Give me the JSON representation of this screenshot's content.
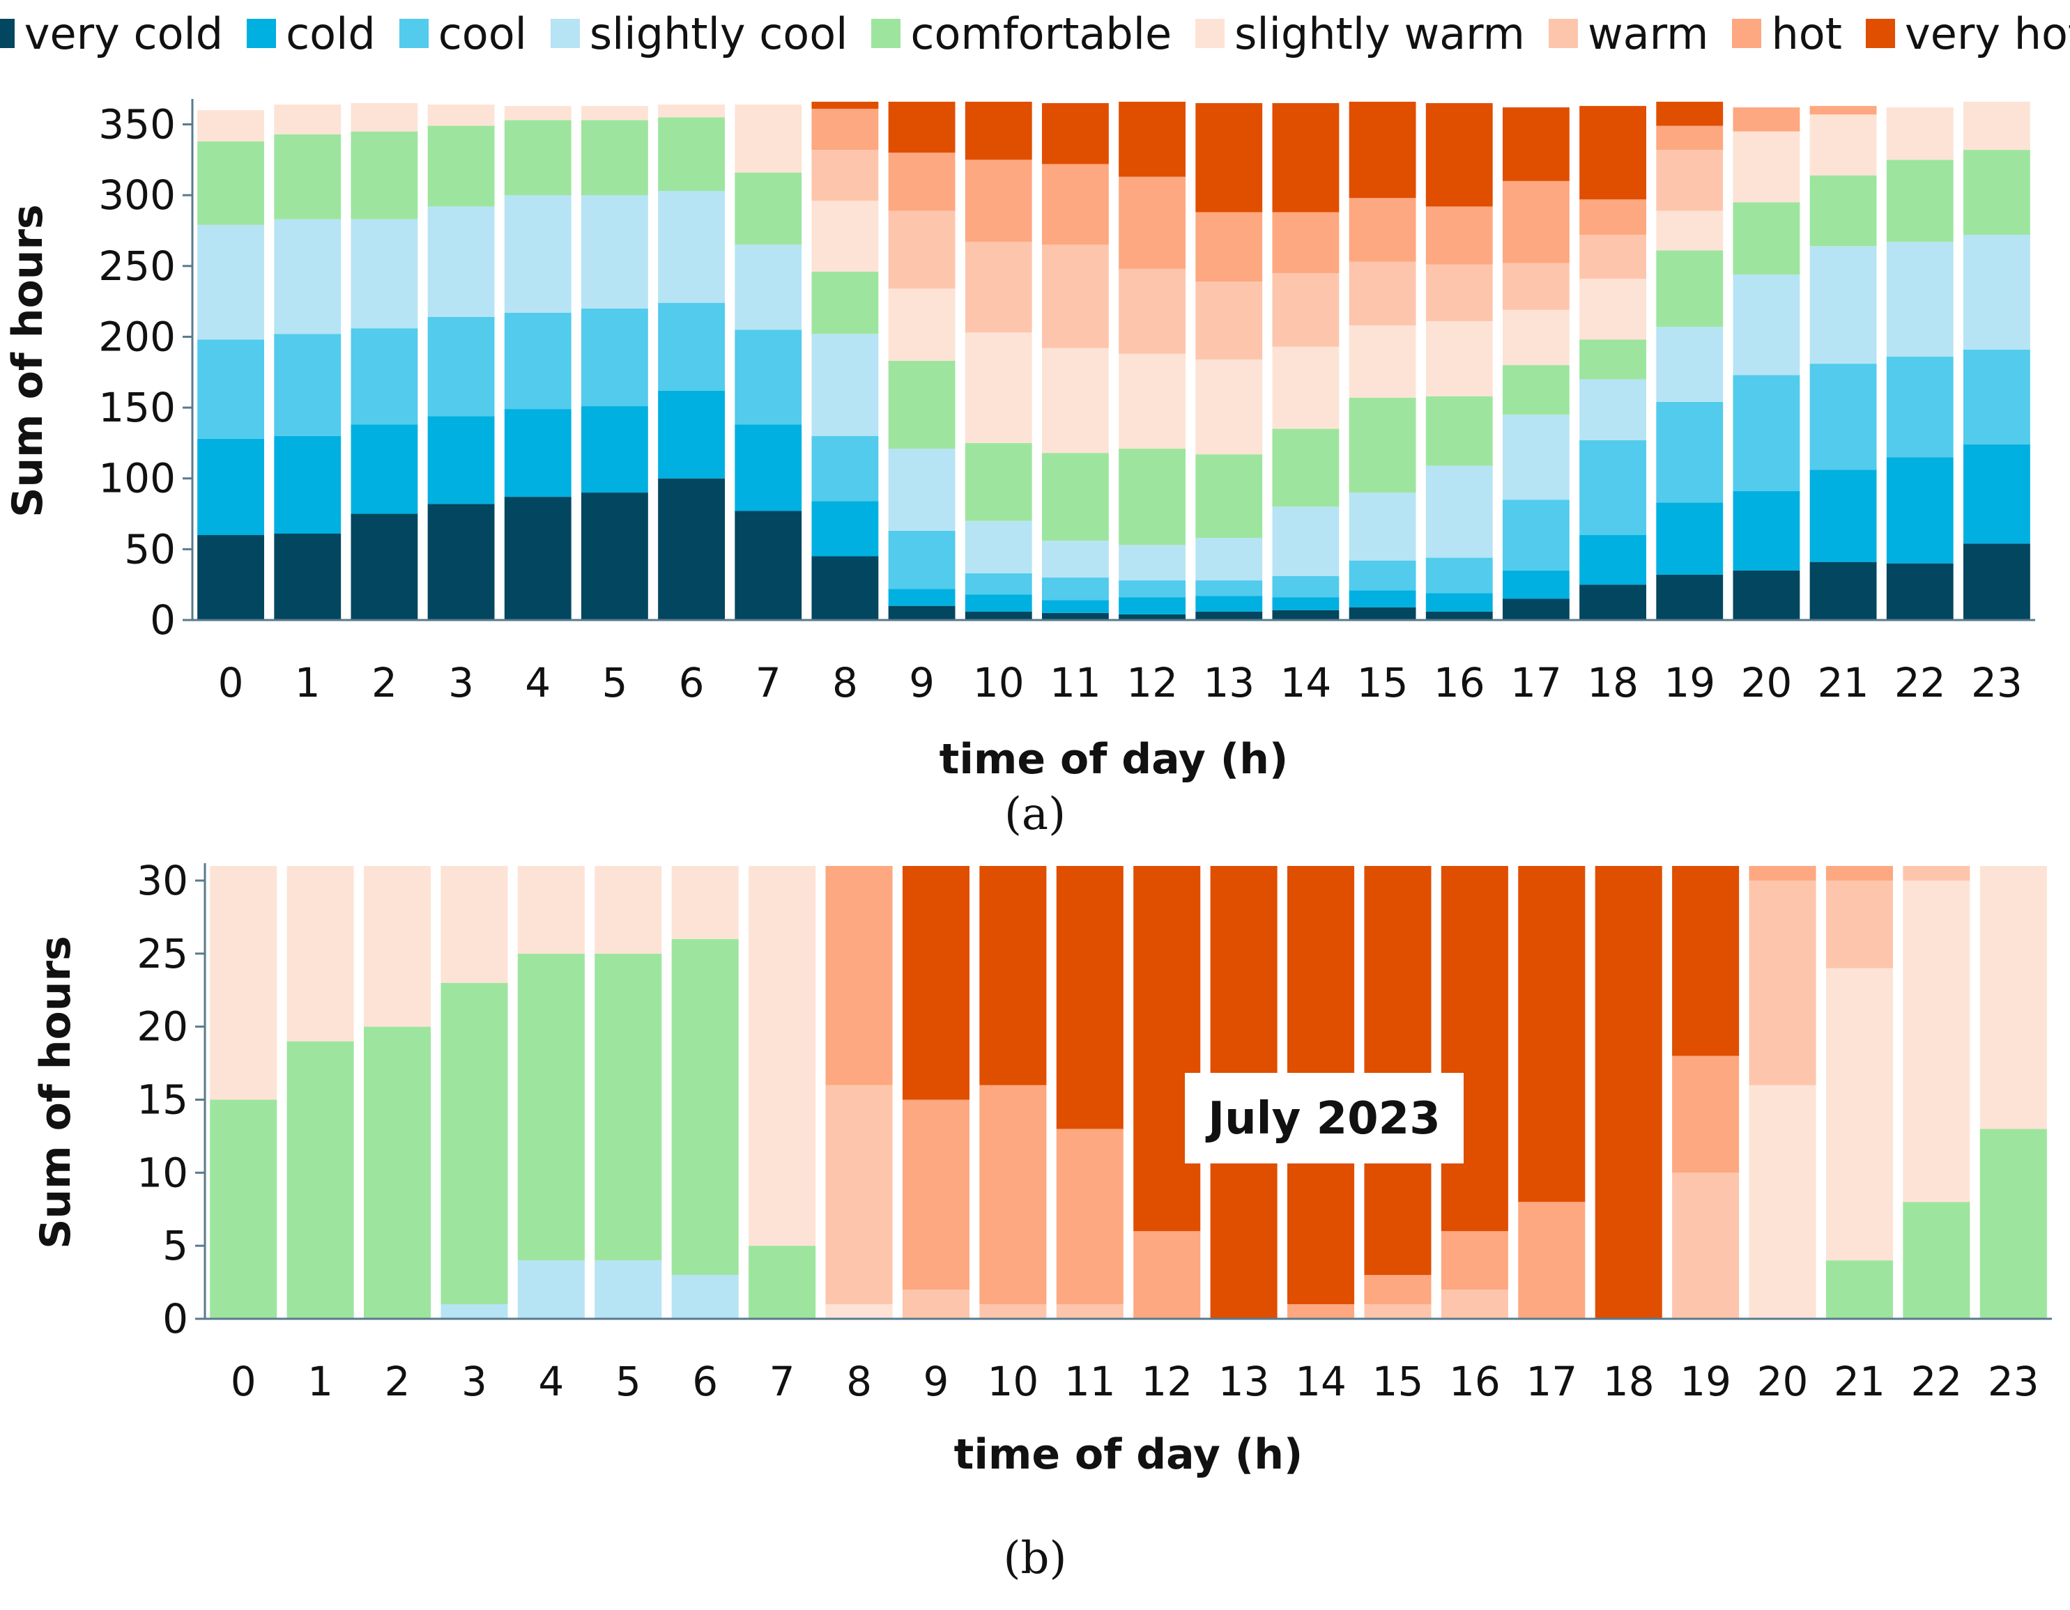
{
  "legend": [
    {
      "name": "very cold",
      "color": "#02465f"
    },
    {
      "name": "cold",
      "color": "#00b0e0"
    },
    {
      "name": "cool",
      "color": "#52cbec"
    },
    {
      "name": "slightly cool",
      "color": "#b6e4f4"
    },
    {
      "name": "comfortable",
      "color": "#9de59e"
    },
    {
      "name": "slightly warm",
      "color": "#fde3d6"
    },
    {
      "name": "warm",
      "color": "#fdc6ac"
    },
    {
      "name": "hot",
      "color": "#fda880"
    },
    {
      "name": "very hot",
      "color": "#e04e00"
    }
  ],
  "chart_data": [
    {
      "type": "bar",
      "stacked": true,
      "panel_label": "(a)",
      "xlabel": "time of day (h)",
      "ylabel": "Sum of hours",
      "ylim": [
        0,
        366
      ],
      "yticks": [
        0,
        50,
        100,
        150,
        200,
        250,
        300,
        350
      ],
      "categories": [
        "0",
        "1",
        "2",
        "3",
        "4",
        "5",
        "6",
        "7",
        "8",
        "9",
        "10",
        "11",
        "12",
        "13",
        "14",
        "15",
        "16",
        "17",
        "18",
        "19",
        "20",
        "21",
        "22",
        "23"
      ],
      "series": [
        {
          "name": "very cold",
          "values": [
            60,
            61,
            75,
            82,
            87,
            90,
            100,
            77,
            45,
            10,
            6,
            5,
            4,
            6,
            7,
            9,
            6,
            15,
            25,
            32,
            35,
            41,
            40,
            54
          ]
        },
        {
          "name": "cold",
          "values": [
            68,
            69,
            63,
            62,
            62,
            61,
            62,
            61,
            39,
            12,
            12,
            9,
            12,
            11,
            9,
            12,
            13,
            20,
            35,
            51,
            56,
            65,
            75,
            70
          ]
        },
        {
          "name": "cool",
          "values": [
            70,
            72,
            68,
            70,
            68,
            69,
            62,
            67,
            46,
            41,
            15,
            16,
            12,
            11,
            15,
            21,
            25,
            50,
            67,
            71,
            82,
            75,
            71,
            67
          ]
        },
        {
          "name": "slightly cool",
          "values": [
            81,
            81,
            77,
            78,
            83,
            80,
            79,
            60,
            72,
            58,
            37,
            26,
            25,
            30,
            49,
            48,
            65,
            60,
            43,
            53,
            71,
            83,
            81,
            81
          ]
        },
        {
          "name": "comfortable",
          "values": [
            59,
            60,
            62,
            57,
            53,
            53,
            52,
            51,
            44,
            62,
            55,
            62,
            68,
            59,
            55,
            67,
            49,
            35,
            28,
            54,
            51,
            50,
            58,
            60
          ]
        },
        {
          "name": "slightly warm",
          "values": [
            22,
            21,
            20,
            15,
            10,
            10,
            9,
            48,
            50,
            51,
            78,
            74,
            67,
            67,
            58,
            51,
            53,
            39,
            43,
            28,
            50,
            43,
            37,
            34
          ]
        },
        {
          "name": "warm",
          "values": [
            0,
            0,
            0,
            0,
            0,
            0,
            0,
            0,
            36,
            55,
            64,
            73,
            60,
            55,
            52,
            45,
            40,
            33,
            31,
            43,
            0,
            0,
            0,
            0
          ]
        },
        {
          "name": "hot",
          "values": [
            0,
            0,
            0,
            0,
            0,
            0,
            0,
            0,
            29,
            41,
            58,
            57,
            65,
            49,
            43,
            45,
            41,
            58,
            25,
            17,
            17,
            6,
            0,
            0
          ]
        },
        {
          "name": "very hot",
          "values": [
            0,
            0,
            0,
            0,
            0,
            0,
            0,
            0,
            5,
            36,
            41,
            43,
            53,
            77,
            77,
            68,
            73,
            52,
            66,
            17,
            0,
            0,
            0,
            0
          ]
        }
      ]
    },
    {
      "type": "bar",
      "stacked": true,
      "panel_label": "(b)",
      "annotation": "July 2023",
      "xlabel": "time of day (h)",
      "ylabel": "Sum of hours",
      "ylim": [
        0,
        31
      ],
      "yticks": [
        0,
        5,
        10,
        15,
        20,
        25,
        30
      ],
      "categories": [
        "0",
        "1",
        "2",
        "3",
        "4",
        "5",
        "6",
        "7",
        "8",
        "9",
        "10",
        "11",
        "12",
        "13",
        "14",
        "15",
        "16",
        "17",
        "18",
        "19",
        "20",
        "21",
        "22",
        "23"
      ],
      "series": [
        {
          "name": "very cold",
          "values": [
            0,
            0,
            0,
            0,
            0,
            0,
            0,
            0,
            0,
            0,
            0,
            0,
            0,
            0,
            0,
            0,
            0,
            0,
            0,
            0,
            0,
            0,
            0,
            0
          ]
        },
        {
          "name": "cold",
          "values": [
            0,
            0,
            0,
            0,
            0,
            0,
            0,
            0,
            0,
            0,
            0,
            0,
            0,
            0,
            0,
            0,
            0,
            0,
            0,
            0,
            0,
            0,
            0,
            0
          ]
        },
        {
          "name": "cool",
          "values": [
            0,
            0,
            0,
            0,
            0,
            0,
            0,
            0,
            0,
            0,
            0,
            0,
            0,
            0,
            0,
            0,
            0,
            0,
            0,
            0,
            0,
            0,
            0,
            0
          ]
        },
        {
          "name": "slightly cool",
          "values": [
            0,
            0,
            0,
            1,
            4,
            4,
            3,
            0,
            0,
            0,
            0,
            0,
            0,
            0,
            0,
            0,
            0,
            0,
            0,
            0,
            0,
            0,
            0,
            0
          ]
        },
        {
          "name": "comfortable",
          "values": [
            15,
            19,
            20,
            22,
            21,
            21,
            23,
            5,
            0,
            0,
            0,
            0,
            0,
            0,
            0,
            0,
            0,
            0,
            0,
            0,
            0,
            4,
            8,
            13
          ]
        },
        {
          "name": "slightly warm",
          "values": [
            16,
            12,
            11,
            8,
            6,
            6,
            5,
            26,
            1,
            0,
            0,
            0,
            0,
            0,
            0,
            0,
            0,
            0,
            0,
            0,
            16,
            20,
            22,
            18
          ]
        },
        {
          "name": "warm",
          "values": [
            0,
            0,
            0,
            0,
            0,
            0,
            0,
            0,
            15,
            2,
            1,
            1,
            0,
            0,
            0,
            1,
            2,
            0,
            0,
            10,
            14,
            6,
            1,
            0
          ]
        },
        {
          "name": "hot",
          "values": [
            0,
            0,
            0,
            0,
            0,
            0,
            0,
            0,
            15,
            13,
            15,
            12,
            6,
            0,
            1,
            2,
            4,
            8,
            0,
            8,
            1,
            1,
            0,
            0
          ]
        },
        {
          "name": "very hot",
          "values": [
            0,
            0,
            0,
            0,
            0,
            0,
            0,
            0,
            0,
            16,
            15,
            18,
            25,
            31,
            30,
            28,
            25,
            23,
            31,
            13,
            0,
            0,
            0,
            0
          ]
        }
      ]
    }
  ]
}
